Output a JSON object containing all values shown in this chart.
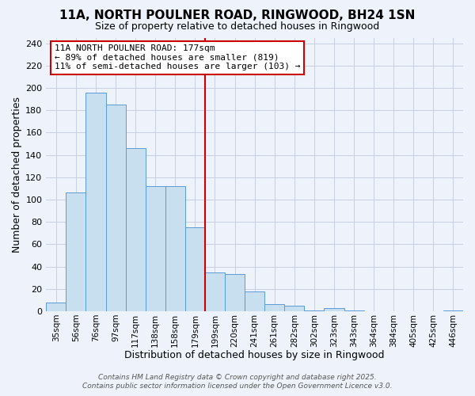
{
  "title": "11A, NORTH POULNER ROAD, RINGWOOD, BH24 1SN",
  "subtitle": "Size of property relative to detached houses in Ringwood",
  "xlabel": "Distribution of detached houses by size in Ringwood",
  "ylabel": "Number of detached properties",
  "bar_labels": [
    "35sqm",
    "56sqm",
    "76sqm",
    "97sqm",
    "117sqm",
    "138sqm",
    "158sqm",
    "179sqm",
    "199sqm",
    "220sqm",
    "241sqm",
    "261sqm",
    "282sqm",
    "302sqm",
    "323sqm",
    "343sqm",
    "364sqm",
    "384sqm",
    "405sqm",
    "425sqm",
    "446sqm"
  ],
  "bar_values": [
    8,
    106,
    196,
    185,
    146,
    112,
    112,
    75,
    35,
    33,
    18,
    6,
    5,
    1,
    3,
    1,
    0,
    0,
    0,
    0,
    1
  ],
  "bar_color": "#c8dff0",
  "bar_edge_color": "#5b9bd5",
  "background_color": "#eef2fa",
  "grid_color": "#c8d0e0",
  "vline_x_index": 7,
  "vline_color": "#cc0000",
  "annotation_title": "11A NORTH POULNER ROAD: 177sqm",
  "annotation_line1": "← 89% of detached houses are smaller (819)",
  "annotation_line2": "11% of semi-detached houses are larger (103) →",
  "annotation_box_edge": "#cc0000",
  "ylim": [
    0,
    245
  ],
  "yticks": [
    0,
    20,
    40,
    60,
    80,
    100,
    120,
    140,
    160,
    180,
    200,
    220,
    240
  ],
  "footer_line1": "Contains HM Land Registry data © Crown copyright and database right 2025.",
  "footer_line2": "Contains public sector information licensed under the Open Government Licence v3.0."
}
